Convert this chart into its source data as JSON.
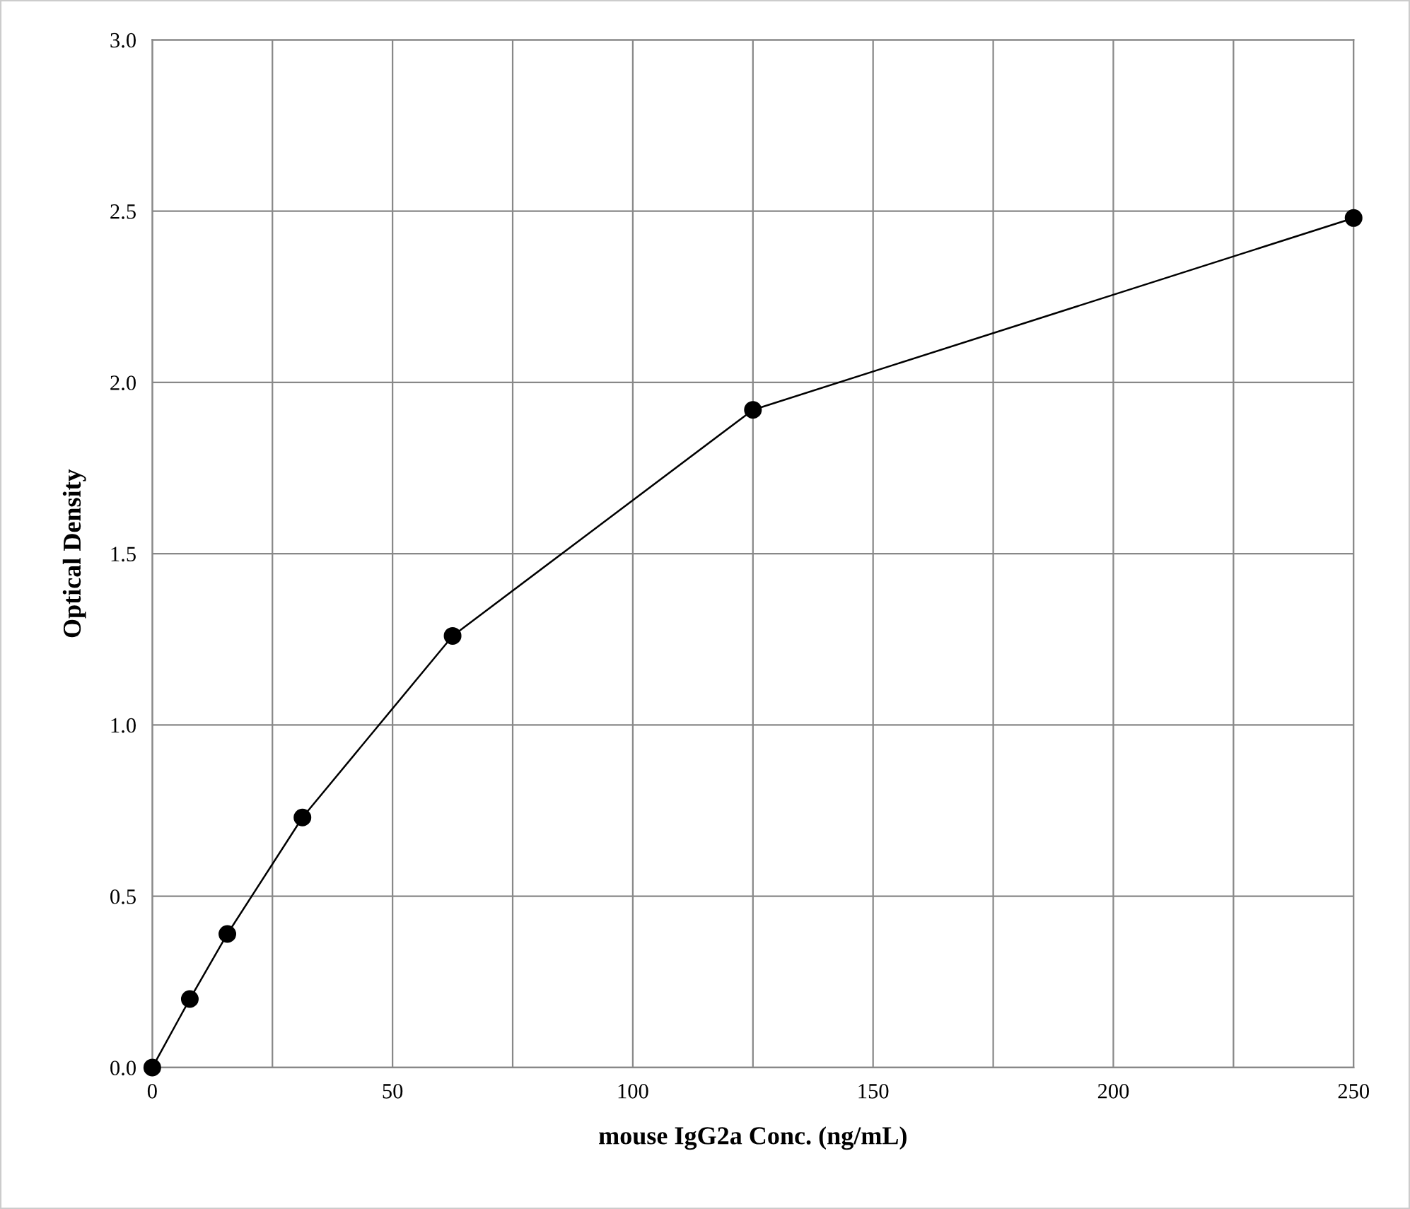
{
  "chart_data": {
    "type": "line",
    "xlabel": "mouse IgG2a Conc. (ng/mL)",
    "ylabel": "Optical Density",
    "x": [
      0,
      7.8125,
      15.625,
      31.25,
      62.5,
      125,
      250
    ],
    "series": [
      {
        "color": "#000000",
        "values": [
          0,
          0.2,
          0.39,
          0.73,
          1.26,
          1.92,
          2.48
        ]
      }
    ],
    "xlim": [
      0,
      250
    ],
    "ylim": [
      0,
      3
    ],
    "xticks": [
      0,
      {
        "value": 25,
        "label": null
      },
      50,
      {
        "value": 75,
        "label": null
      },
      100,
      {
        "value": 125,
        "label": null
      },
      150,
      {
        "value": 175,
        "label": null
      },
      200,
      {
        "value": 225,
        "label": null
      },
      250
    ],
    "yticks": [
      {
        "value": 0,
        "label": "0.0"
      },
      {
        "value": 0.5,
        "label": "0.5"
      },
      {
        "value": 1,
        "label": "1.0"
      },
      {
        "value": 1.5,
        "label": "1.5"
      },
      {
        "value": 2,
        "label": "2.0"
      },
      {
        "value": 2.5,
        "label": "2.5"
      },
      {
        "value": 3,
        "label": "3.0"
      }
    ],
    "grid": true,
    "marker": "circle",
    "line_style": "solid"
  }
}
